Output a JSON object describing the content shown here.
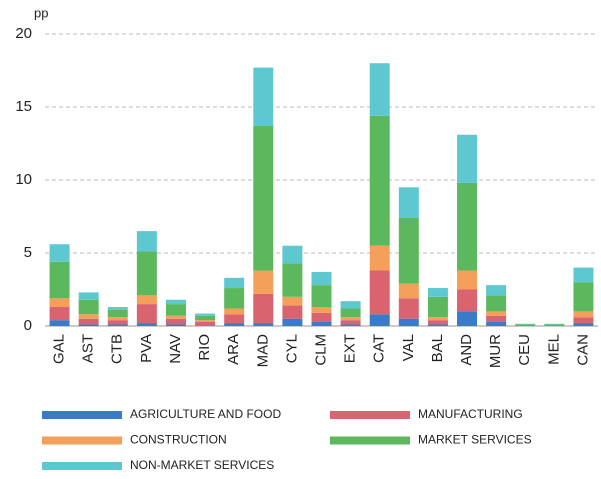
{
  "chart_data": {
    "type": "stacked_bar",
    "y_label": "pp",
    "categories": [
      "GAL",
      "AST",
      "CTB",
      "PVA",
      "NAV",
      "RIO",
      "ARA",
      "MAD",
      "CYL",
      "CLM",
      "EXT",
      "CAT",
      "VAL",
      "BAL",
      "AND",
      "MUR",
      "CEU",
      "MEL",
      "CAN"
    ],
    "series": [
      {
        "name": "AGRICULTURE AND FOOD",
        "color": "#3a7bc8",
        "values": [
          0.4,
          0.1,
          0.1,
          0.2,
          0.1,
          0.05,
          0.2,
          0.2,
          0.5,
          0.3,
          0.1,
          0.8,
          0.5,
          0.1,
          1.0,
          0.3,
          0,
          0,
          0.2
        ]
      },
      {
        "name": "MANUFACTURING",
        "color": "#d96470",
        "values": [
          0.9,
          0.4,
          0.3,
          1.3,
          0.4,
          0.25,
          0.6,
          2.0,
          0.9,
          0.6,
          0.3,
          3.0,
          1.4,
          0.3,
          1.5,
          0.4,
          0,
          0,
          0.4
        ]
      },
      {
        "name": "CONSTRUCTION",
        "color": "#f5a05a",
        "values": [
          0.6,
          0.3,
          0.2,
          0.6,
          0.2,
          0.1,
          0.4,
          1.6,
          0.6,
          0.4,
          0.2,
          1.7,
          1.0,
          0.2,
          1.3,
          0.3,
          0,
          0,
          0.4
        ]
      },
      {
        "name": "MARKET SERVICES",
        "color": "#5cb85c",
        "values": [
          2.5,
          1.0,
          0.5,
          3.0,
          0.8,
          0.3,
          1.4,
          9.9,
          2.3,
          1.5,
          0.6,
          8.9,
          4.5,
          1.4,
          6.0,
          1.1,
          0.1,
          0.1,
          2.0
        ]
      },
      {
        "name": "NON-MARKET SERVICES",
        "color": "#5ec8d0",
        "values": [
          1.2,
          0.5,
          0.2,
          1.4,
          0.3,
          0.15,
          0.7,
          4.0,
          1.2,
          0.9,
          0.5,
          3.6,
          2.1,
          0.6,
          3.3,
          0.7,
          0.05,
          0.05,
          1.0
        ]
      }
    ],
    "ylim": [
      0,
      20
    ],
    "yticks": [
      0,
      5,
      10,
      15,
      20
    ],
    "grid": true
  }
}
